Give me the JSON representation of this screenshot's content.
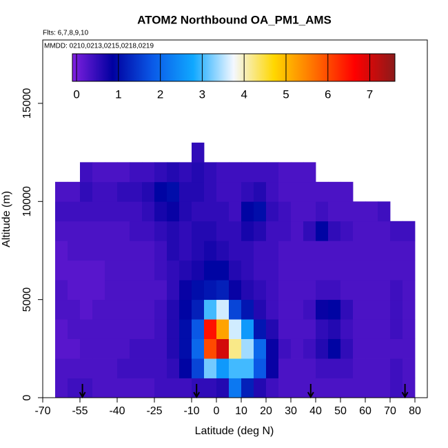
{
  "chart_data": {
    "type": "heatmap",
    "title": "ATOM2 Northbound OA_PM1_AMS",
    "annotations": [
      "Flts: 6,7,8,9,10",
      "MMDD: 0210,0213,0215,0218,0219"
    ],
    "x_label": "Latitude (deg N)",
    "y_label": "Altitude (m)",
    "xlim": [
      -70,
      85
    ],
    "ylim": [
      0,
      18230
    ],
    "xticks": [
      -70,
      -55,
      -40,
      -25,
      -10,
      0,
      10,
      20,
      30,
      40,
      50,
      60,
      70,
      80
    ],
    "yticks": [
      0,
      5000,
      10000,
      15000
    ],
    "colorbar_lim": [
      -0.1,
      7.6
    ],
    "colorbar_ticks": [
      0,
      1,
      2,
      3,
      4,
      5,
      6,
      7
    ],
    "colormap": [
      "#8020e0",
      "#0000a0",
      "#0a5ae8",
      "#10a8ff",
      "#f4f8ff",
      "#ffd700",
      "#ff7000",
      "#ff0000",
      "#8b1a1a"
    ],
    "arrows_lat": [
      -54,
      -8,
      38,
      76
    ],
    "x_edges": [
      -65,
      -60,
      -55,
      -50,
      -45,
      -40,
      -35,
      -30,
      -25,
      -20,
      -15,
      -10,
      -5,
      0,
      5,
      10,
      15,
      20,
      25,
      30,
      35,
      40,
      45,
      50,
      55,
      60,
      65,
      70,
      75,
      80
    ],
    "y_edges": [
      0,
      1000,
      2000,
      3000,
      4000,
      5000,
      6000,
      7000,
      8000,
      9000,
      10000,
      11000,
      12000,
      13000
    ],
    "z": [
      [
        0.3,
        0.3,
        0.2,
        0.2,
        0.3,
        0.3,
        0.2,
        0.2,
        0.3,
        0.4,
        0.3,
        null,
        null
      ],
      [
        0.4,
        0.3,
        0.2,
        0.3,
        0.3,
        0.2,
        0.2,
        0.3,
        0.3,
        0.4,
        0.3,
        null,
        null
      ],
      [
        0.4,
        0.3,
        0.3,
        0.3,
        0.2,
        0.2,
        0.2,
        0.3,
        0.3,
        0.4,
        0.5,
        0.4,
        null
      ],
      [
        0.3,
        0.3,
        0.3,
        0.3,
        0.3,
        0.2,
        0.2,
        0.3,
        0.3,
        0.4,
        0.4,
        0.3,
        null
      ],
      [
        0.3,
        0.3,
        0.3,
        0.3,
        0.3,
        0.3,
        0.3,
        0.3,
        0.3,
        0.4,
        0.4,
        0.3,
        null
      ],
      [
        0.3,
        0.4,
        0.3,
        0.3,
        0.3,
        0.3,
        0.3,
        0.3,
        0.3,
        0.4,
        0.5,
        0.3,
        null
      ],
      [
        0.3,
        0.4,
        0.4,
        0.3,
        0.3,
        0.3,
        0.3,
        0.3,
        0.4,
        0.4,
        0.5,
        0.4,
        null
      ],
      [
        0.3,
        0.4,
        0.4,
        0.3,
        0.3,
        0.3,
        0.3,
        0.3,
        0.4,
        0.5,
        0.6,
        0.4,
        null
      ],
      [
        0.4,
        0.4,
        0.4,
        0.4,
        0.4,
        0.3,
        0.4,
        0.4,
        0.5,
        0.7,
        0.9,
        0.5,
        null
      ],
      [
        0.4,
        0.5,
        0.6,
        0.6,
        0.6,
        0.5,
        0.5,
        0.6,
        0.6,
        0.8,
        1.0,
        0.6,
        null
      ],
      [
        0.4,
        0.9,
        1.0,
        1.0,
        0.9,
        0.8,
        0.6,
        0.5,
        0.5,
        0.6,
        0.6,
        0.5,
        null
      ],
      [
        0.5,
        1.6,
        2.0,
        1.8,
        1.2,
        1.0,
        0.7,
        0.6,
        0.6,
        0.5,
        0.6,
        0.6,
        0.5
      ],
      [
        0.5,
        3.2,
        6.0,
        6.5,
        3.0,
        1.1,
        0.9,
        0.7,
        0.6,
        0.5,
        0.5,
        0.5,
        null
      ],
      [
        0.6,
        2.6,
        7.0,
        5.2,
        3.6,
        1.2,
        0.9,
        0.6,
        0.5,
        0.5,
        0.4,
        0.4,
        null
      ],
      [
        2.2,
        3.0,
        4.2,
        3.6,
        1.6,
        0.8,
        0.6,
        0.5,
        0.5,
        0.4,
        0.4,
        0.4,
        null
      ],
      [
        1.2,
        3.0,
        3.4,
        2.6,
        1.1,
        0.6,
        0.5,
        0.5,
        0.7,
        0.9,
        0.5,
        0.4,
        null
      ],
      [
        0.6,
        1.8,
        2.0,
        1.1,
        0.6,
        0.5,
        0.4,
        0.4,
        0.6,
        1.0,
        0.6,
        0.4,
        null
      ],
      [
        0.4,
        0.8,
        0.8,
        0.6,
        0.4,
        0.4,
        0.4,
        0.4,
        0.4,
        0.5,
        0.4,
        0.4,
        null
      ],
      [
        0.3,
        0.3,
        0.4,
        0.3,
        0.3,
        0.3,
        0.3,
        0.3,
        0.4,
        0.4,
        0.3,
        0.3,
        null
      ],
      [
        0.3,
        0.3,
        0.3,
        0.3,
        0.3,
        0.3,
        0.3,
        0.3,
        0.3,
        0.3,
        0.3,
        0.3,
        null
      ],
      [
        0.3,
        0.3,
        0.4,
        0.3,
        0.4,
        0.3,
        0.3,
        0.3,
        0.5,
        0.3,
        0.3,
        0.3,
        null
      ],
      [
        0.3,
        0.4,
        0.6,
        0.5,
        0.8,
        0.4,
        0.3,
        0.3,
        0.9,
        0.4,
        0.3,
        null,
        null
      ],
      [
        0.3,
        0.4,
        0.9,
        0.6,
        0.9,
        0.4,
        0.3,
        0.3,
        0.5,
        0.3,
        0.3,
        null,
        null
      ],
      [
        0.3,
        0.4,
        0.5,
        0.4,
        0.5,
        0.3,
        0.3,
        0.3,
        0.4,
        0.3,
        0.3,
        null,
        null
      ],
      [
        0.3,
        0.3,
        0.3,
        0.3,
        0.3,
        0.3,
        0.3,
        0.3,
        0.3,
        0.3,
        null,
        null,
        null
      ],
      [
        0.3,
        0.3,
        0.3,
        0.3,
        0.3,
        0.3,
        0.3,
        0.3,
        0.3,
        0.3,
        null,
        null,
        null
      ],
      [
        0.3,
        0.3,
        0.3,
        0.3,
        0.3,
        0.3,
        0.3,
        0.3,
        0.3,
        0.4,
        null,
        null,
        null
      ],
      [
        0.4,
        0.4,
        0.3,
        0.4,
        0.4,
        0.4,
        0.3,
        0.3,
        0.4,
        null,
        null,
        null,
        null
      ],
      [
        0.3,
        0.3,
        0.3,
        0.3,
        0.3,
        0.3,
        0.3,
        0.3,
        0.4,
        null,
        null,
        null,
        null
      ]
    ]
  }
}
